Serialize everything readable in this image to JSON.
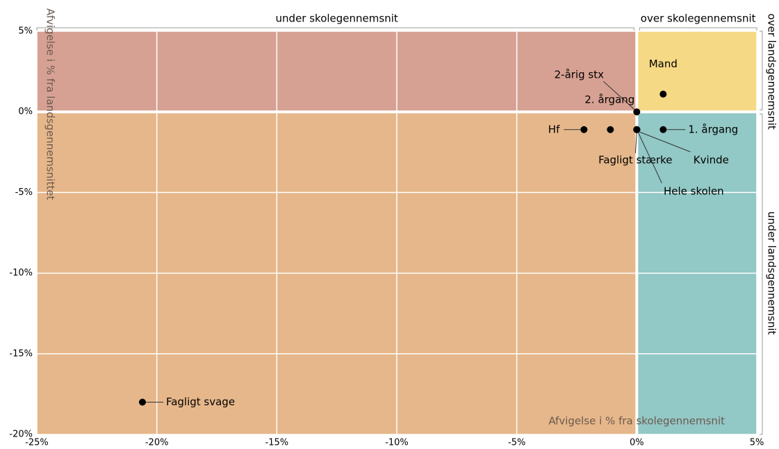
{
  "chart_data": {
    "type": "scatter",
    "x_label": "Afvigelse i % fra skolegennemsnit",
    "y_label": "Afvigelse i % fra landsgennemsnittet",
    "quadrant_labels": {
      "top_left": "under skolegennemsnit",
      "top_right": "over skolegennemsnit",
      "right_top": "over landsgennemsnit",
      "right_bottom": "under landsgennemsnit"
    },
    "quadrant_colors": {
      "top_left": "#d6a193",
      "bottom_left": "#e6b78a",
      "top_right": "#f5d985",
      "bottom_right": "#92c8c5"
    },
    "xlim": [
      -25,
      5
    ],
    "ylim": [
      -20,
      5
    ],
    "xticks": [
      {
        "value": -25,
        "label": "-25%"
      },
      {
        "value": -20,
        "label": "-20%"
      },
      {
        "value": -15,
        "label": "-15%"
      },
      {
        "value": -10,
        "label": "-10%"
      },
      {
        "value": -5,
        "label": "-5%"
      },
      {
        "value": 0,
        "label": "0%"
      },
      {
        "value": 5,
        "label": "5%"
      }
    ],
    "yticks": [
      {
        "value": -20,
        "label": "-20%"
      },
      {
        "value": -15,
        "label": "-15%"
      },
      {
        "value": -10,
        "label": "-10%"
      },
      {
        "value": -5,
        "label": "-5%"
      },
      {
        "value": 0,
        "label": "0%"
      },
      {
        "value": 5,
        "label": "5%"
      }
    ],
    "grid": true,
    "color": "#000000",
    "labels": [
      "Mand",
      "2-årig stx",
      "2. årgang",
      "Hf",
      "Fagligt stærke",
      "Kvinde",
      "Hele skolen",
      "1. årgang",
      "Fagligt svage"
    ],
    "x": [
      1.1,
      0,
      -1.1,
      -2.2,
      0,
      0,
      0,
      1.1,
      -20.6
    ],
    "values": [
      1.1,
      0,
      -1.1,
      -1.1,
      -1.1,
      -1.1,
      -1.1,
      -1.1,
      -18
    ]
  }
}
